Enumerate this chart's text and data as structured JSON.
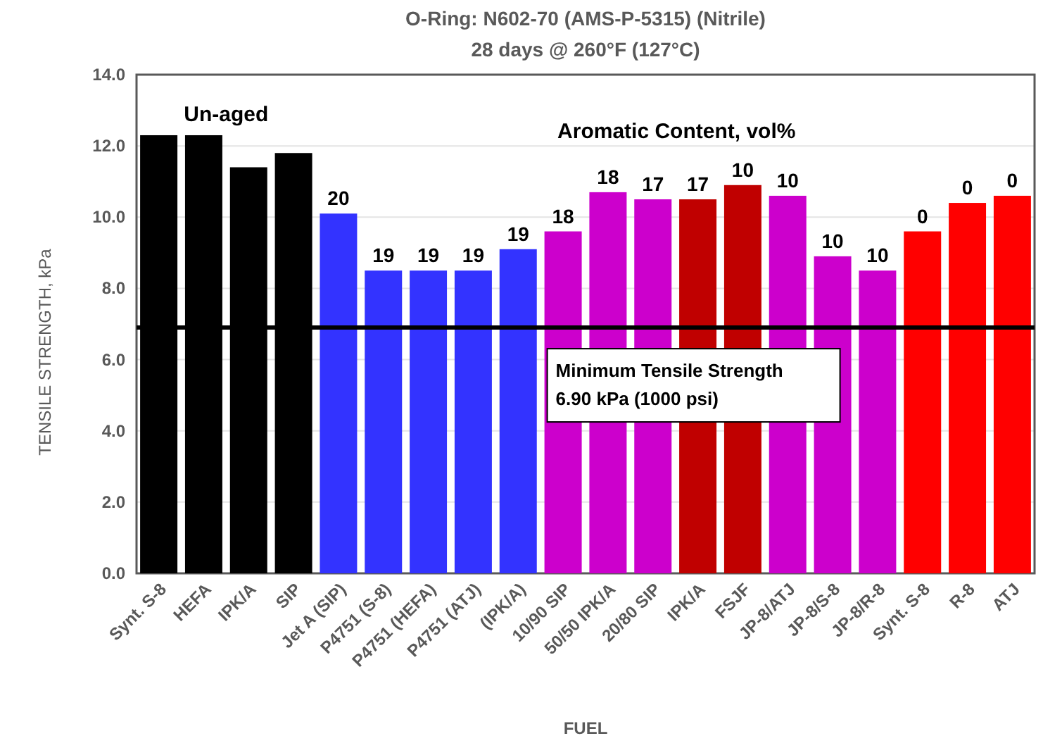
{
  "chart_data": {
    "type": "bar",
    "title": "O-Ring: N602-70 (AMS-P-5315) (Nitrile)",
    "subtitle": "28 days @ 260°F (127°C)",
    "xlabel": "FUEL",
    "ylabel": "TENSILE STRENGTH, kPa",
    "categories": [
      "Synt. S-8",
      "HEFA",
      "IPK/A",
      "SIP",
      "Jet A (SIP)",
      "P4751 (S-8)",
      "P4751 (HEFA)",
      "P4751 (ATJ)",
      "(IPK/A)",
      "10/90 SIP",
      "50/50 IPK/A",
      "20/80 SIP",
      "IPK/A",
      "FSJF",
      "JP-8/ATJ",
      "JP-8/S-8",
      "JP-8/R-8",
      "Synt. S-8",
      "R-8",
      "ATJ"
    ],
    "values": [
      12.3,
      12.3,
      11.4,
      11.8,
      10.1,
      8.5,
      8.5,
      8.5,
      9.1,
      9.6,
      10.7,
      10.5,
      10.5,
      10.9,
      10.6,
      8.9,
      8.5,
      9.6,
      10.4,
      10.6
    ],
    "colors": [
      "#000000",
      "#000000",
      "#000000",
      "#000000",
      "#3333ff",
      "#3333ff",
      "#3333ff",
      "#3333ff",
      "#3333ff",
      "#cc00cc",
      "#cc00cc",
      "#cc00cc",
      "#c00000",
      "#c00000",
      "#cc00cc",
      "#cc00cc",
      "#cc00cc",
      "#ff0000",
      "#ff0000",
      "#ff0000"
    ],
    "ylim": [
      0,
      14
    ],
    "yticks": [
      {
        "value": 0,
        "label": "0.0"
      },
      {
        "value": 2,
        "label": "2.0"
      },
      {
        "value": 4,
        "label": "4.0"
      },
      {
        "value": 6,
        "label": "6.0"
      },
      {
        "value": 8,
        "label": "8.0"
      },
      {
        "value": 10,
        "label": "10.0"
      },
      {
        "value": 12,
        "label": "12.0"
      },
      {
        "value": 14,
        "label": "14.0"
      }
    ],
    "grid": "y",
    "ref_lines": [
      {
        "axis": "y",
        "value": 6.9,
        "label": "Minimum Tensile Strength\n6.90 kPa (1000 psi)",
        "color": "#000000"
      }
    ],
    "annotations": [
      "Un-aged",
      "Aromatic Content, vol%",
      "17",
      "0",
      {
        "text": "20",
        "x": "Jet A (SIP)",
        "y": 10.1
      },
      {
        "text": "19",
        "x": "P4751 (S-8)",
        "y": 8.5
      },
      {
        "text": "19",
        "x": "P4751 (HEFA)",
        "y": 8.5
      },
      {
        "text": "19",
        "x": "P4751 (ATJ)",
        "y": 8.5
      },
      {
        "text": "19",
        "x": "(IPK/A)",
        "y": 9.1
      },
      {
        "text": "18",
        "x": "10/90 SIP",
        "y": 9.6
      },
      {
        "text": "18",
        "x": "50/50 IPK/A",
        "y": 10.7
      },
      {
        "text": "17",
        "x": "20/80 SIP",
        "y": 10.5
      },
      {
        "text": "10",
        "x": "FSJF",
        "y": 10.9
      },
      {
        "text": "10",
        "x": "JP-8/ATJ",
        "y": 10.6
      },
      {
        "text": "10",
        "x": "JP-8/S-8",
        "y": 8.9
      },
      {
        "text": "10",
        "x": "JP-8/R-8",
        "y": 8.5
      },
      {
        "text": "0",
        "x": "R-8",
        "y": 10.4
      },
      {
        "text": "0",
        "x": "ATJ",
        "y": 10.6
      }
    ]
  }
}
